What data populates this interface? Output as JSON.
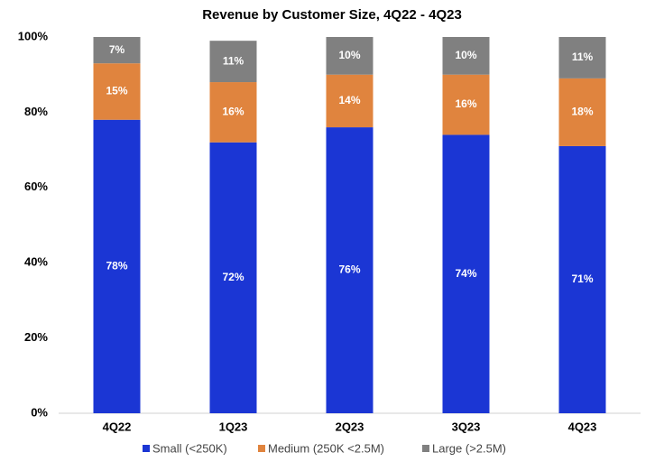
{
  "chart_data": {
    "type": "stacked_bar",
    "title": "Revenue by Customer Size, 4Q22 - 4Q23",
    "categories": [
      "4Q22",
      "1Q23",
      "2Q23",
      "3Q23",
      "4Q23"
    ],
    "series": [
      {
        "name": "Small (<250K)",
        "color": "#1b36d4",
        "values": [
          78,
          72,
          76,
          74,
          71
        ],
        "value_labels": [
          "78%",
          "72%",
          "76%",
          "74%",
          "71%"
        ]
      },
      {
        "name": "Medium (250K <2.5M)",
        "color": "#e0843e",
        "values": [
          15,
          16,
          14,
          16,
          18
        ],
        "value_labels": [
          "15%",
          "16%",
          "14%",
          "16%",
          "18%"
        ]
      },
      {
        "name": "Large (>2.5M)",
        "color": "#808080",
        "values": [
          7,
          11,
          10,
          10,
          11
        ],
        "value_labels": [
          "7%",
          "11%",
          "10%",
          "10%",
          "11%"
        ]
      }
    ],
    "ylim": [
      0,
      100
    ],
    "yticks": [
      {
        "value": 0,
        "label": "0%"
      },
      {
        "value": 20,
        "label": "20%"
      },
      {
        "value": 40,
        "label": "40%"
      },
      {
        "value": 60,
        "label": "60%"
      },
      {
        "value": 80,
        "label": "80%"
      },
      {
        "value": 100,
        "label": "100%"
      }
    ],
    "legend": "bottom"
  }
}
